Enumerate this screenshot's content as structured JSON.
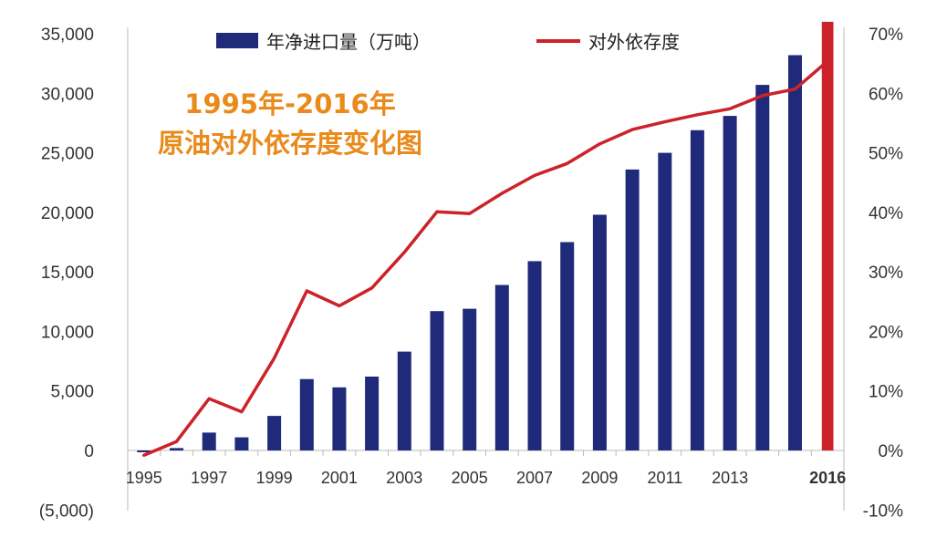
{
  "chart_data": {
    "type": "bar+line",
    "title": "1995年-2016年",
    "subtitle": "原油对外依存度变化图",
    "categories": [
      "1995",
      "1996",
      "1997",
      "1998",
      "1999",
      "2000",
      "2001",
      "2002",
      "2003",
      "2004",
      "2005",
      "2006",
      "2007",
      "2008",
      "2009",
      "2010",
      "2011",
      "2012",
      "2013",
      "2014",
      "2015",
      "2016"
    ],
    "x_tick_labels": [
      "1995",
      "1997",
      "1999",
      "2001",
      "2003",
      "2005",
      "2007",
      "2009",
      "2011",
      "2013",
      "2016"
    ],
    "series": [
      {
        "name": "年净进口量（万吨）",
        "type": "bar",
        "axis": "left",
        "color": "#1f2a7a",
        "values": [
          -150,
          200,
          1500,
          1100,
          2900,
          6000,
          5300,
          6200,
          8300,
          11700,
          11900,
          13900,
          15900,
          17500,
          19800,
          23600,
          25000,
          26900,
          28100,
          30700,
          33200,
          36000
        ]
      },
      {
        "name": "对外依存度",
        "type": "line",
        "axis": "right",
        "color": "#cc2229",
        "values": [
          -0.8,
          1.5,
          8.7,
          6.5,
          15.5,
          26.8,
          24.3,
          27.3,
          33.3,
          40.1,
          39.8,
          43.2,
          46.2,
          48.2,
          51.5,
          53.9,
          55.2,
          56.4,
          57.4,
          59.6,
          60.7,
          65.4
        ]
      }
    ],
    "y_left": {
      "range": [
        -5000,
        35000
      ],
      "ticks": [
        "35,000",
        "30,000",
        "25,000",
        "20,000",
        "15,000",
        "10,000",
        "5,000",
        "0",
        "(5,000)"
      ]
    },
    "y_right": {
      "range": [
        -10,
        70
      ],
      "unit": "%",
      "ticks": [
        "70%",
        "60%",
        "50%",
        "40%",
        "30%",
        "20%",
        "10%",
        "0%",
        "-10%"
      ]
    },
    "highlight": {
      "year": "2016",
      "color": "#cc2229"
    },
    "colors": {
      "bar": "#1f2a7a",
      "line": "#cc2229",
      "title": "#e98a1b",
      "negative_tick": "#cc2229"
    },
    "grid": false,
    "legend_position": "top"
  }
}
